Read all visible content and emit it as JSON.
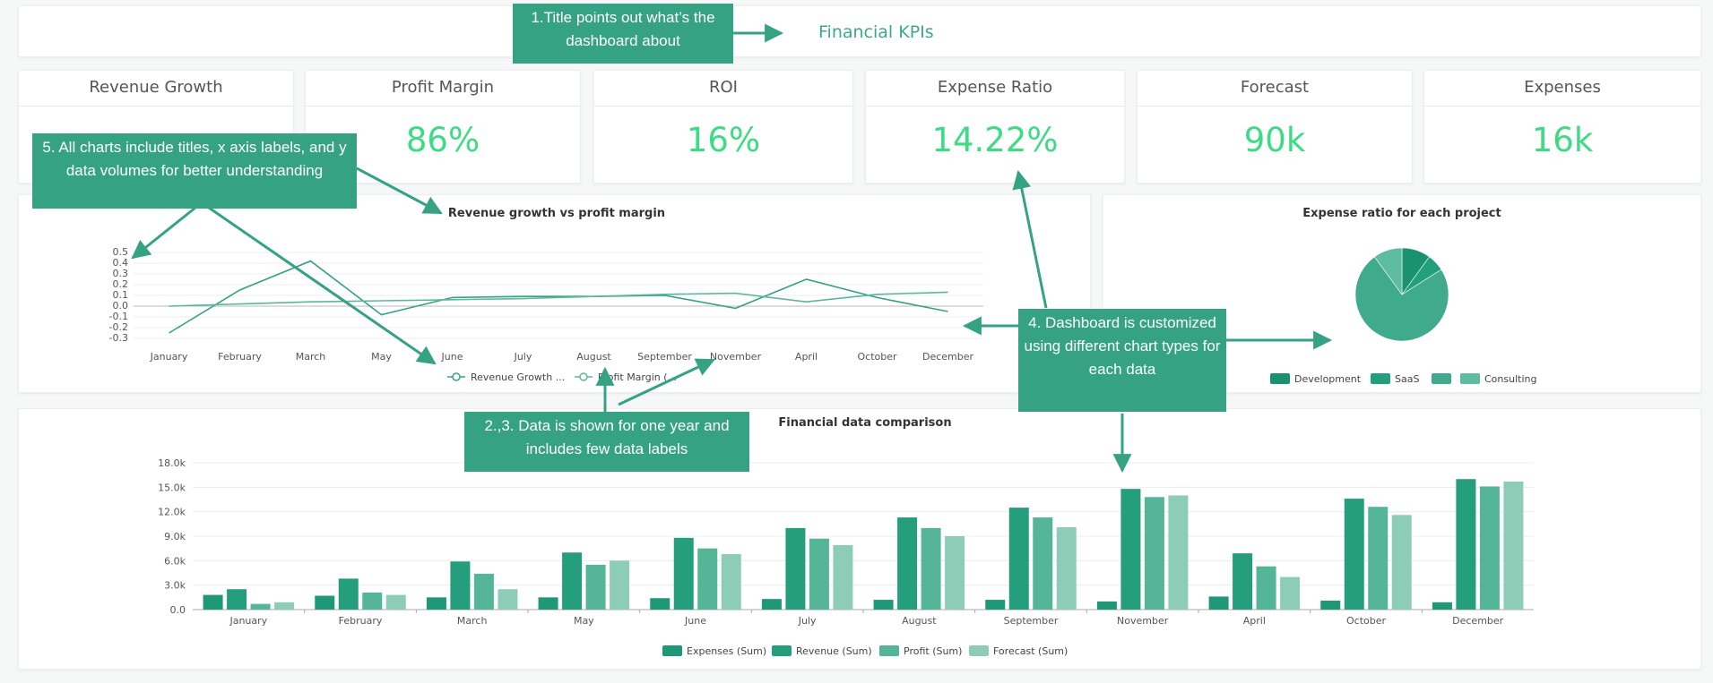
{
  "header": {
    "title": "Financial KPIs"
  },
  "kpis": [
    {
      "label": "Revenue Growth",
      "value": ""
    },
    {
      "label": "Profit Margin",
      "value": "86%"
    },
    {
      "label": "ROI",
      "value": "16%"
    },
    {
      "label": "Expense Ratio",
      "value": "14.22%"
    },
    {
      "label": "Forecast",
      "value": "90k"
    },
    {
      "label": "Expenses",
      "value": "16k"
    }
  ],
  "colors": {
    "accent": "#35a383",
    "kpi_value": "#3ddc84",
    "arrow": "#35a383"
  },
  "annotations": [
    "1.Title points out what’s the dashboard about",
    "5. All charts include titles, x axis labels, and y data volumes for better understanding",
    "4. Dashboard is customized using different chart types for each data",
    "2.,3. Data is shown for one year and includes few data labels"
  ],
  "chart_data": [
    {
      "type": "line",
      "title": "Revenue growth vs profit margin",
      "categories": [
        "January",
        "February",
        "March",
        "May",
        "June",
        "July",
        "August",
        "September",
        "November",
        "April",
        "October",
        "December"
      ],
      "ylim": [
        -0.3,
        0.5
      ],
      "yticks": [
        "0.5",
        "0.4",
        "0.3",
        "0.2",
        "0.1",
        "0.0",
        "-0.1",
        "-0.2",
        "-0.3"
      ],
      "series": [
        {
          "name": "Revenue Growth ...",
          "color": "#35a383",
          "values": [
            -0.25,
            0.15,
            0.42,
            -0.08,
            0.08,
            0.09,
            0.09,
            0.1,
            -0.02,
            0.25,
            0.08,
            -0.05
          ]
        },
        {
          "name": "Profit Margin (...",
          "color": "#5cb89c",
          "values": [
            0.0,
            0.02,
            0.04,
            0.05,
            0.06,
            0.07,
            0.09,
            0.11,
            0.12,
            0.04,
            0.11,
            0.13
          ]
        }
      ],
      "legend": "bottom"
    },
    {
      "type": "pie",
      "title": "Expense ratio for each project",
      "labels": [
        "Development",
        "SaaS",
        "",
        "Consulting"
      ],
      "values": [
        10,
        6,
        74,
        10
      ],
      "colors": [
        "#1a9270",
        "#229f7c",
        "#3fab8c",
        "#5ebca0"
      ],
      "legend": "bottom"
    },
    {
      "type": "bar",
      "title": "Financial data comparison",
      "categories": [
        "January",
        "February",
        "March",
        "May",
        "June",
        "July",
        "August",
        "September",
        "November",
        "April",
        "October",
        "December"
      ],
      "ylim": [
        0,
        18000
      ],
      "yticks": [
        "18.0k",
        "15.0k",
        "12.0k",
        "9.0k",
        "6.0k",
        "3.0k",
        "0.0"
      ],
      "series": [
        {
          "name": "Expenses (Sum)",
          "color": "#1e9876",
          "values": [
            1800,
            1700,
            1500,
            1500,
            1400,
            1300,
            1200,
            1200,
            1000,
            1600,
            1100,
            900
          ]
        },
        {
          "name": "Revenue (Sum)",
          "color": "#249e7c",
          "values": [
            2500,
            3800,
            5900,
            7000,
            8800,
            10000,
            11300,
            12500,
            14800,
            6900,
            13600,
            16000
          ]
        },
        {
          "name": "Profit (Sum)",
          "color": "#55b597",
          "values": [
            700,
            2100,
            4400,
            5500,
            7500,
            8700,
            10000,
            11300,
            13800,
            5300,
            12600,
            15100
          ]
        },
        {
          "name": "Forecast (Sum)",
          "color": "#8dcdb7",
          "values": [
            900,
            1800,
            2500,
            6000,
            6800,
            7900,
            9000,
            10100,
            14000,
            4000,
            11600,
            15700
          ]
        }
      ],
      "legend": "bottom"
    }
  ]
}
